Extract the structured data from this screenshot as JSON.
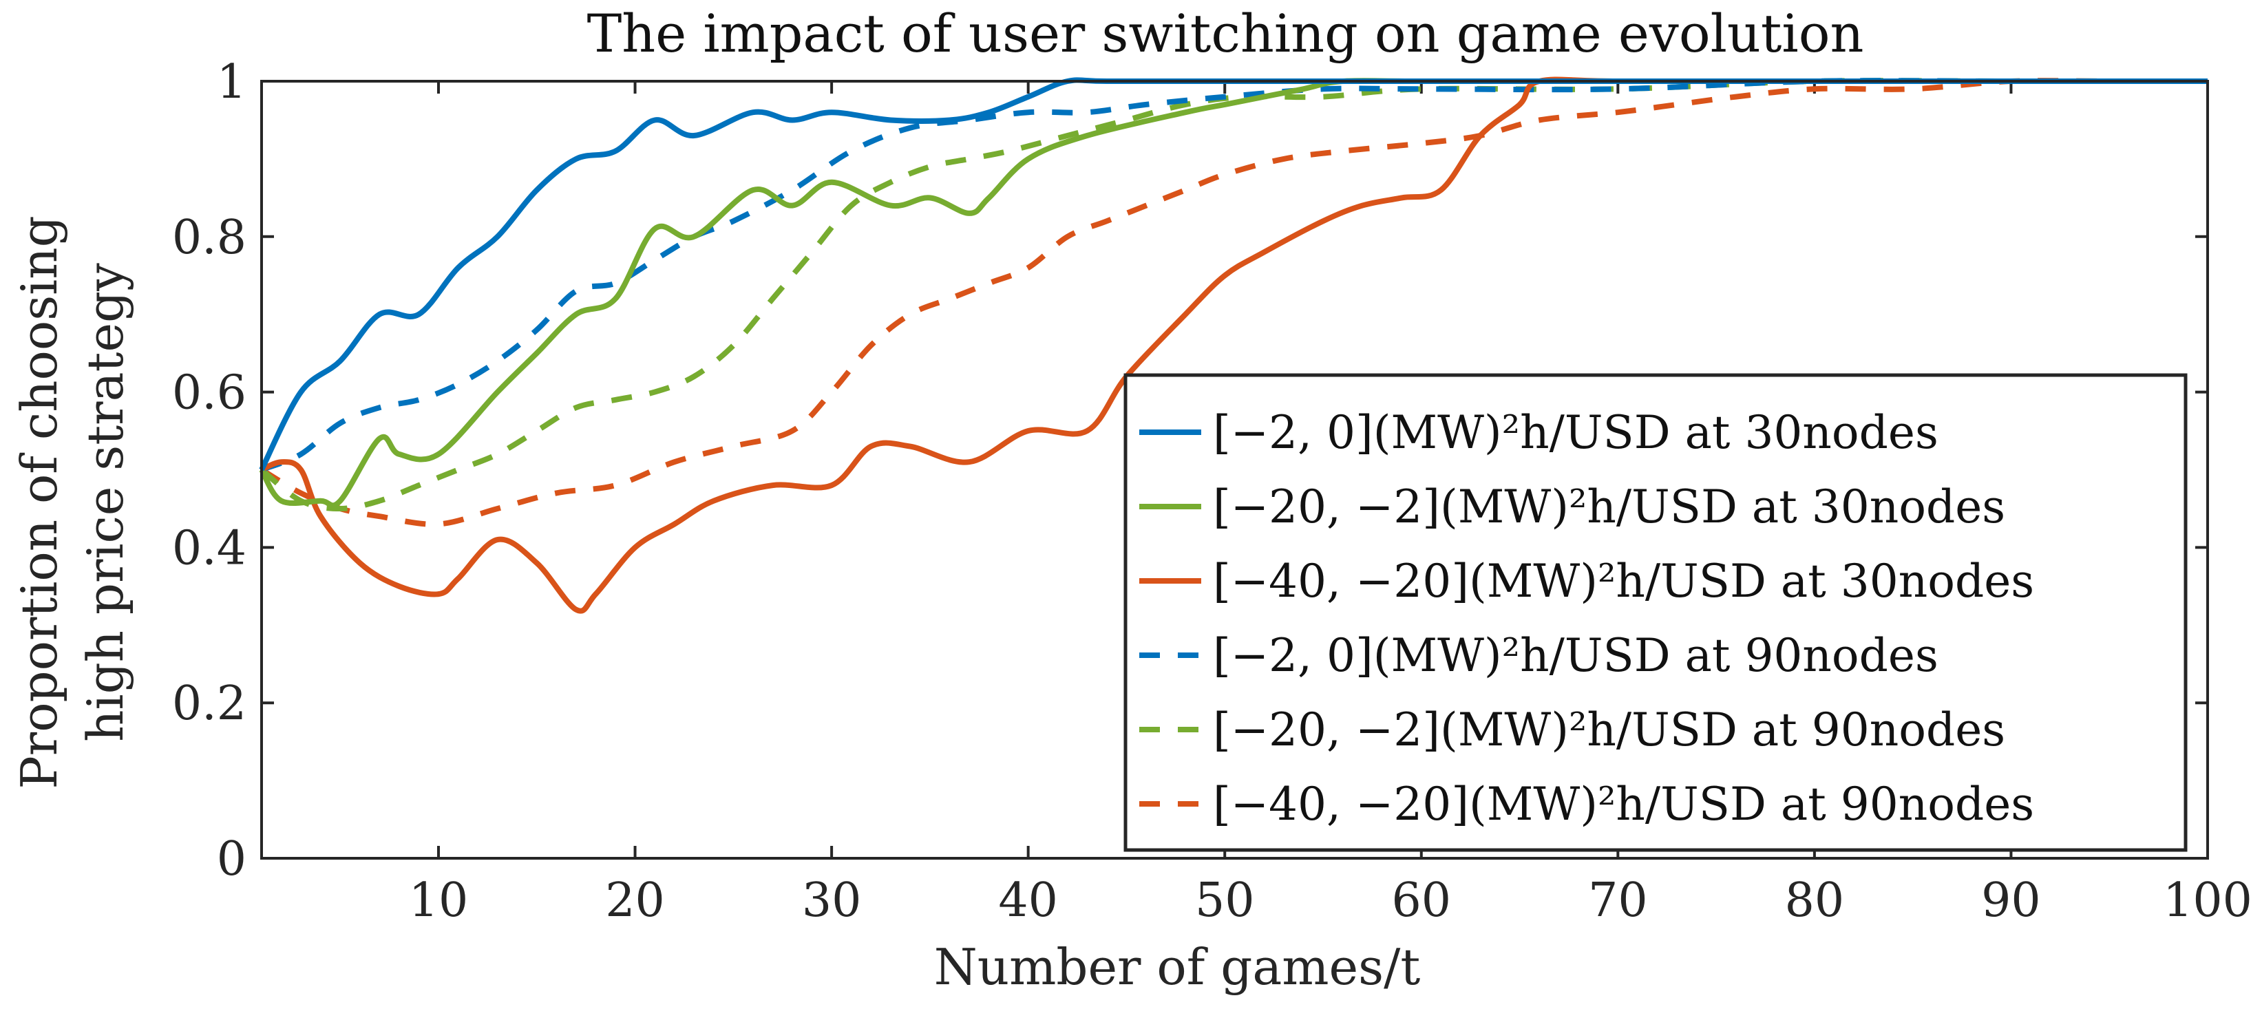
{
  "chart_data": {
    "type": "line",
    "title": "The impact of user switching on game evolution",
    "xlabel": "Number of games/t",
    "ylabel_line1": "Proportion of choosing",
    "ylabel_line2": "high price strategy",
    "xlim": [
      1,
      100
    ],
    "ylim": [
      0,
      1
    ],
    "xticks": [
      10,
      20,
      30,
      40,
      50,
      60,
      70,
      80,
      90,
      100
    ],
    "yticks": [
      0,
      0.2,
      0.4,
      0.6,
      0.8,
      1
    ],
    "ytick_labels": [
      "0",
      "0.2",
      "0.4",
      "0.6",
      "0.8",
      "1"
    ],
    "legend_position": "bottom-right",
    "series": [
      {
        "name": "[−2, 0](MW)²h/USD at 30nodes",
        "color": "#0072BD",
        "dash": "solid",
        "x": [
          1,
          3,
          5,
          7,
          9,
          11,
          13,
          15,
          17,
          19,
          21,
          23,
          26,
          28,
          30,
          33,
          36,
          38,
          40,
          42,
          44,
          50,
          60,
          70,
          80,
          90,
          100
        ],
        "y": [
          0.5,
          0.6,
          0.64,
          0.7,
          0.7,
          0.76,
          0.8,
          0.86,
          0.9,
          0.91,
          0.95,
          0.93,
          0.96,
          0.95,
          0.96,
          0.95,
          0.95,
          0.96,
          0.98,
          1.0,
          1.0,
          1.0,
          1.0,
          1.0,
          1.0,
          1.0,
          1.0
        ]
      },
      {
        "name": "[−20, −2](MW)²h/USD at 30nodes",
        "color": "#77AC30",
        "dash": "solid",
        "x": [
          1,
          2,
          4,
          5,
          7,
          8,
          10,
          13,
          15,
          17,
          19,
          21,
          23,
          26,
          28,
          30,
          33,
          35,
          37,
          38,
          40,
          43,
          48,
          50,
          52,
          54,
          56,
          60,
          70,
          80,
          90,
          100
        ],
        "y": [
          0.5,
          0.46,
          0.46,
          0.46,
          0.54,
          0.52,
          0.52,
          0.6,
          0.65,
          0.7,
          0.72,
          0.81,
          0.8,
          0.86,
          0.84,
          0.87,
          0.84,
          0.85,
          0.83,
          0.85,
          0.9,
          0.93,
          0.96,
          0.97,
          0.98,
          0.99,
          1.0,
          1.0,
          1.0,
          1.0,
          1.0,
          1.0
        ]
      },
      {
        "name": "[−40, −20](MW)²h/USD at 30nodes",
        "color": "#D95319",
        "dash": "solid",
        "x": [
          1,
          2,
          3,
          4,
          6,
          8,
          10,
          11,
          13,
          15,
          17,
          18,
          20,
          22,
          24,
          27,
          30,
          32,
          34,
          37,
          40,
          43,
          45,
          48,
          50,
          52,
          55,
          57,
          59,
          61,
          63,
          65,
          66,
          70,
          80,
          90,
          100
        ],
        "y": [
          0.5,
          0.51,
          0.5,
          0.44,
          0.38,
          0.35,
          0.34,
          0.36,
          0.41,
          0.38,
          0.32,
          0.34,
          0.4,
          0.43,
          0.46,
          0.48,
          0.48,
          0.53,
          0.53,
          0.51,
          0.55,
          0.55,
          0.62,
          0.7,
          0.75,
          0.78,
          0.82,
          0.84,
          0.85,
          0.86,
          0.93,
          0.97,
          1.0,
          1.0,
          1.0,
          1.0,
          1.0
        ]
      },
      {
        "name": "[−2, 0](MW)²h/USD at 90nodes",
        "color": "#0072BD",
        "dash": "dashed",
        "x": [
          1,
          3,
          5,
          7,
          9,
          11,
          13,
          15,
          17,
          19,
          21,
          23,
          25,
          28,
          31,
          34,
          37,
          40,
          43,
          46,
          50,
          55,
          60,
          70,
          80,
          90,
          100
        ],
        "y": [
          0.5,
          0.52,
          0.56,
          0.58,
          0.59,
          0.61,
          0.64,
          0.68,
          0.73,
          0.74,
          0.77,
          0.8,
          0.82,
          0.86,
          0.91,
          0.94,
          0.95,
          0.96,
          0.96,
          0.97,
          0.98,
          0.99,
          0.99,
          0.99,
          1.0,
          1.0,
          1.0
        ]
      },
      {
        "name": "[−20, −2](MW)²h/USD at 90nodes",
        "color": "#77AC30",
        "dash": "dashed",
        "x": [
          1,
          3,
          5,
          7,
          9,
          11,
          13,
          15,
          17,
          19,
          21,
          23,
          25,
          27,
          29,
          31,
          33,
          35,
          37,
          39,
          42,
          45,
          48,
          51,
          55,
          60,
          70,
          80,
          90,
          100
        ],
        "y": [
          0.5,
          0.46,
          0.45,
          0.46,
          0.48,
          0.5,
          0.52,
          0.55,
          0.58,
          0.59,
          0.6,
          0.62,
          0.66,
          0.72,
          0.78,
          0.84,
          0.87,
          0.89,
          0.9,
          0.91,
          0.93,
          0.95,
          0.97,
          0.98,
          0.98,
          0.99,
          0.99,
          1.0,
          1.0,
          1.0
        ]
      },
      {
        "name": "[−40, −20](MW)²h/USD at 90nodes",
        "color": "#D95319",
        "dash": "dashed",
        "x": [
          1,
          3,
          5,
          7,
          10,
          13,
          16,
          19,
          22,
          25,
          28,
          30,
          32,
          34,
          36,
          38,
          40,
          42,
          44,
          46,
          48,
          50,
          53,
          56,
          60,
          63,
          66,
          70,
          73,
          76,
          80,
          85,
          90,
          95,
          100
        ],
        "y": [
          0.5,
          0.47,
          0.45,
          0.44,
          0.43,
          0.45,
          0.47,
          0.48,
          0.51,
          0.53,
          0.55,
          0.6,
          0.66,
          0.7,
          0.72,
          0.74,
          0.76,
          0.8,
          0.82,
          0.84,
          0.86,
          0.88,
          0.9,
          0.91,
          0.92,
          0.93,
          0.95,
          0.96,
          0.97,
          0.98,
          0.99,
          0.99,
          1.0,
          1.0,
          1.0
        ]
      }
    ]
  }
}
